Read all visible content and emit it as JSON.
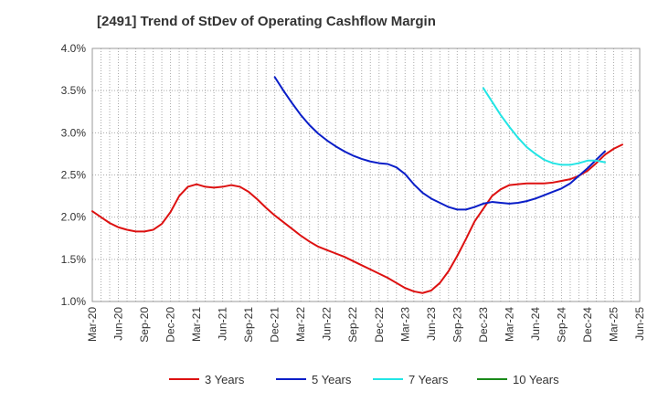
{
  "chart_data": {
    "type": "line",
    "title": "[2491]  Trend of StDev of Operating Cashflow Margin",
    "xlabel": "",
    "ylabel": "",
    "x_start": "Mar-20",
    "step_months": 1,
    "x_tick_labels": [
      "Mar-20",
      "Jun-20",
      "Sep-20",
      "Dec-20",
      "Mar-21",
      "Jun-21",
      "Sep-21",
      "Dec-21",
      "Mar-22",
      "Jun-22",
      "Sep-22",
      "Dec-22",
      "Mar-23",
      "Jun-23",
      "Sep-23",
      "Dec-23",
      "Mar-24",
      "Jun-24",
      "Sep-24",
      "Dec-24",
      "Mar-25",
      "Jun-25"
    ],
    "y_tick_labels": [
      "1.0%",
      "1.5%",
      "2.0%",
      "2.5%",
      "3.0%",
      "3.5%",
      "4.0%"
    ],
    "ylim": [
      1.0,
      4.0
    ],
    "grid": true,
    "legend_position": "bottom",
    "series": [
      {
        "name": "3 Years",
        "color": "#dd1111",
        "start": "Mar-20",
        "values": [
          2.07,
          2.0,
          1.93,
          1.88,
          1.85,
          1.83,
          1.83,
          1.85,
          1.92,
          2.06,
          2.25,
          2.36,
          2.39,
          2.36,
          2.35,
          2.36,
          2.38,
          2.36,
          2.3,
          2.21,
          2.11,
          2.02,
          1.94,
          1.86,
          1.78,
          1.71,
          1.65,
          1.61,
          1.57,
          1.53,
          1.48,
          1.43,
          1.38,
          1.33,
          1.28,
          1.22,
          1.16,
          1.12,
          1.1,
          1.13,
          1.22,
          1.36,
          1.54,
          1.74,
          1.95,
          2.1,
          2.25,
          2.33,
          2.38,
          2.39,
          2.4,
          2.4,
          2.4,
          2.41,
          2.43,
          2.45,
          2.49,
          2.55,
          2.64,
          2.74,
          2.81,
          2.86
        ]
      },
      {
        "name": "5 Years",
        "color": "#0a1ec8",
        "start": "Dec-21",
        "values": [
          3.66,
          3.5,
          3.35,
          3.21,
          3.09,
          2.99,
          2.91,
          2.84,
          2.78,
          2.73,
          2.69,
          2.66,
          2.64,
          2.63,
          2.59,
          2.51,
          2.39,
          2.29,
          2.22,
          2.17,
          2.12,
          2.09,
          2.09,
          2.12,
          2.16,
          2.18,
          2.17,
          2.16,
          2.17,
          2.19,
          2.22,
          2.26,
          2.3,
          2.34,
          2.4,
          2.49,
          2.58,
          2.68,
          2.78
        ]
      },
      {
        "name": "7 Years",
        "color": "#22e5e5",
        "start": "Dec-23",
        "values": [
          3.53,
          3.37,
          3.21,
          3.07,
          2.94,
          2.83,
          2.75,
          2.68,
          2.64,
          2.62,
          2.62,
          2.64,
          2.67,
          2.67,
          2.65
        ]
      },
      {
        "name": "10 Years",
        "color": "#1a8a1a",
        "start": "Mar-25",
        "values": []
      }
    ]
  }
}
